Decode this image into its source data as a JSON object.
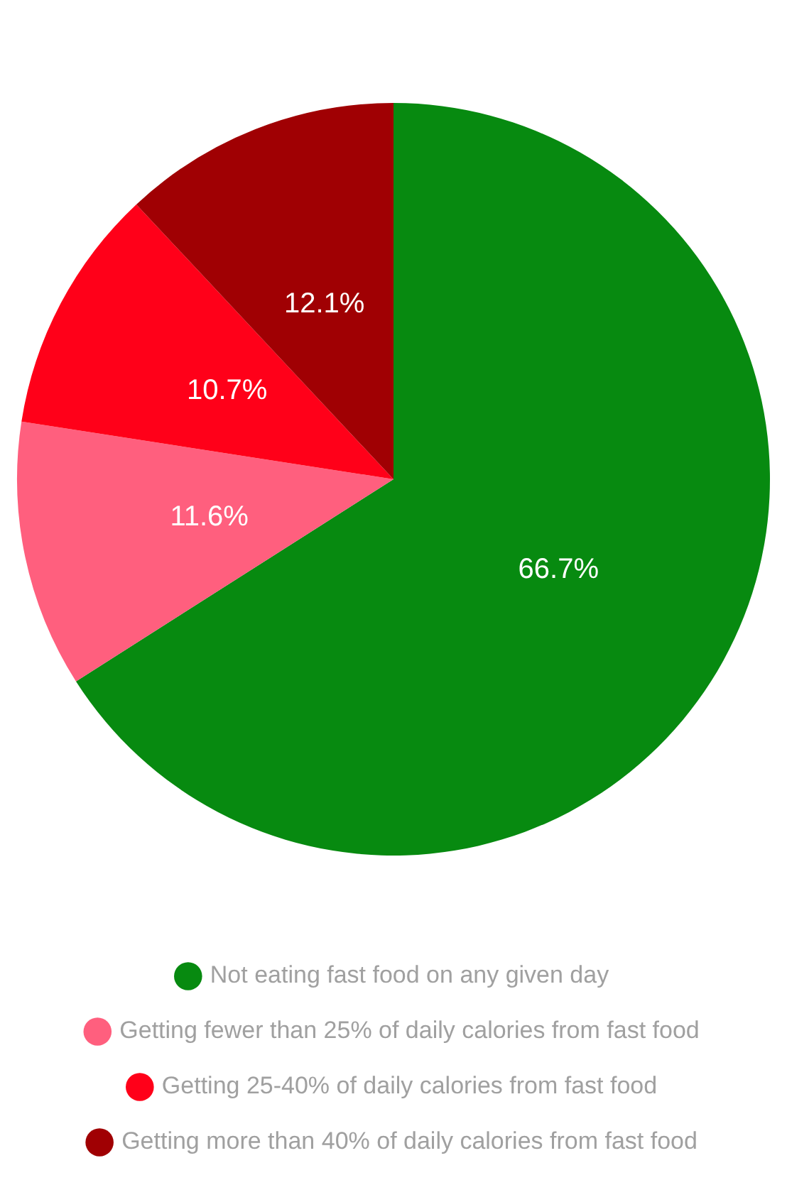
{
  "chart_data": {
    "type": "pie",
    "categories": [
      "Not eating fast food on any given day",
      "Getting fewer than 25% of daily calories from fast food",
      "Getting 25-40% of daily calories from fast food",
      "Getting more than 40% of daily calories from fast food"
    ],
    "values": [
      66.7,
      11.6,
      10.7,
      12.1
    ],
    "colors": [
      "#078a10",
      "#ff5f7e",
      "#ff0019",
      "#a00003"
    ],
    "value_labels": [
      "66.7%",
      "11.6%",
      "10.7%",
      "12.1%"
    ],
    "legend": "bottom"
  }
}
